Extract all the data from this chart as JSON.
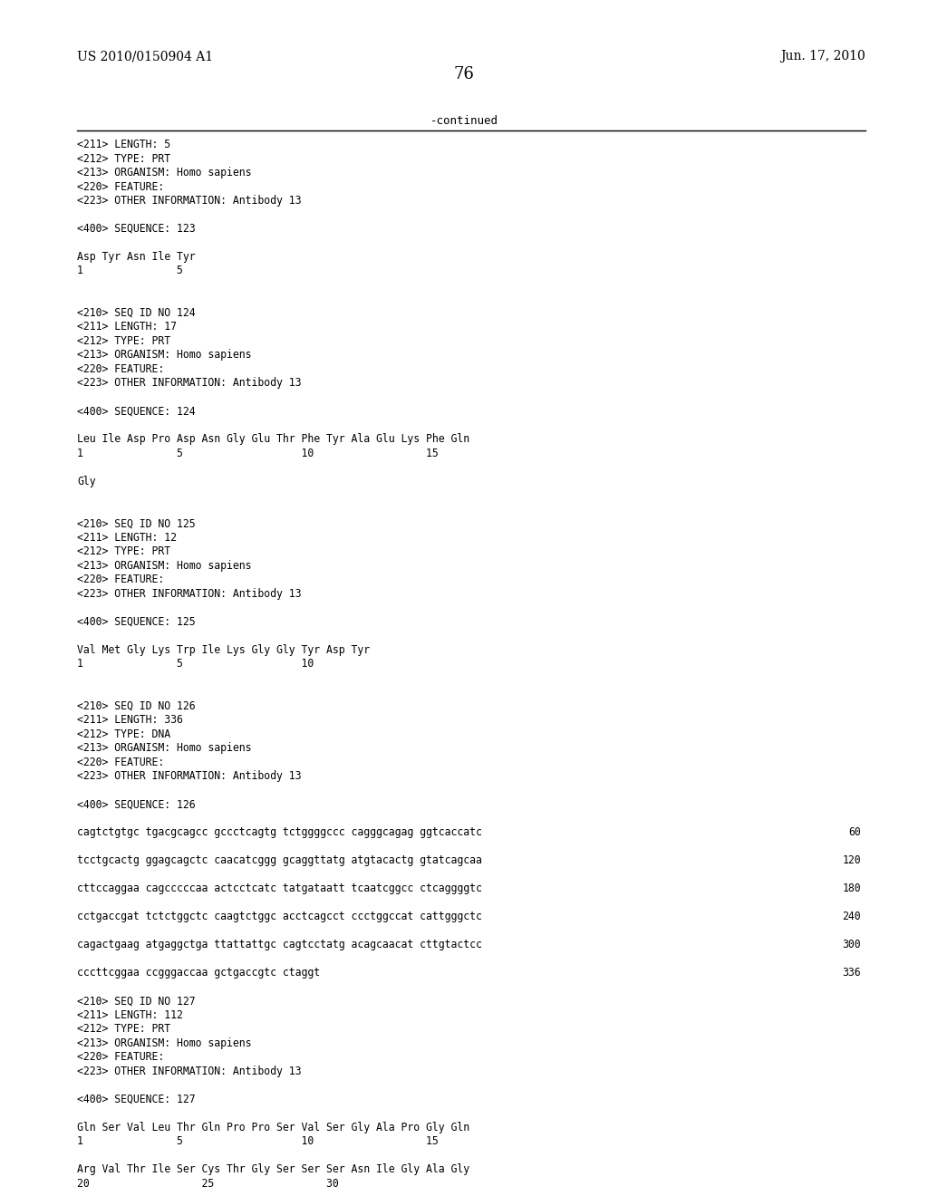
{
  "header_left": "US 2010/0150904 A1",
  "header_right": "Jun. 17, 2010",
  "page_number": "76",
  "continued_label": "-continued",
  "background_color": "#ffffff",
  "text_color": "#000000",
  "lines": [
    {
      "text": "<211> LENGTH: 5",
      "num": null
    },
    {
      "text": "<212> TYPE: PRT",
      "num": null
    },
    {
      "text": "<213> ORGANISM: Homo sapiens",
      "num": null
    },
    {
      "text": "<220> FEATURE:",
      "num": null
    },
    {
      "text": "<223> OTHER INFORMATION: Antibody 13",
      "num": null
    },
    {
      "text": "",
      "num": null
    },
    {
      "text": "<400> SEQUENCE: 123",
      "num": null
    },
    {
      "text": "",
      "num": null
    },
    {
      "text": "Asp Tyr Asn Ile Tyr",
      "num": null
    },
    {
      "text": "1               5",
      "num": null
    },
    {
      "text": "",
      "num": null
    },
    {
      "text": "",
      "num": null
    },
    {
      "text": "<210> SEQ ID NO 124",
      "num": null
    },
    {
      "text": "<211> LENGTH: 17",
      "num": null
    },
    {
      "text": "<212> TYPE: PRT",
      "num": null
    },
    {
      "text": "<213> ORGANISM: Homo sapiens",
      "num": null
    },
    {
      "text": "<220> FEATURE:",
      "num": null
    },
    {
      "text": "<223> OTHER INFORMATION: Antibody 13",
      "num": null
    },
    {
      "text": "",
      "num": null
    },
    {
      "text": "<400> SEQUENCE: 124",
      "num": null
    },
    {
      "text": "",
      "num": null
    },
    {
      "text": "Leu Ile Asp Pro Asp Asn Gly Glu Thr Phe Tyr Ala Glu Lys Phe Gln",
      "num": null
    },
    {
      "text": "1               5                   10                  15",
      "num": null
    },
    {
      "text": "",
      "num": null
    },
    {
      "text": "Gly",
      "num": null
    },
    {
      "text": "",
      "num": null
    },
    {
      "text": "",
      "num": null
    },
    {
      "text": "<210> SEQ ID NO 125",
      "num": null
    },
    {
      "text": "<211> LENGTH: 12",
      "num": null
    },
    {
      "text": "<212> TYPE: PRT",
      "num": null
    },
    {
      "text": "<213> ORGANISM: Homo sapiens",
      "num": null
    },
    {
      "text": "<220> FEATURE:",
      "num": null
    },
    {
      "text": "<223> OTHER INFORMATION: Antibody 13",
      "num": null
    },
    {
      "text": "",
      "num": null
    },
    {
      "text": "<400> SEQUENCE: 125",
      "num": null
    },
    {
      "text": "",
      "num": null
    },
    {
      "text": "Val Met Gly Lys Trp Ile Lys Gly Gly Tyr Asp Tyr",
      "num": null
    },
    {
      "text": "1               5                   10",
      "num": null
    },
    {
      "text": "",
      "num": null
    },
    {
      "text": "",
      "num": null
    },
    {
      "text": "<210> SEQ ID NO 126",
      "num": null
    },
    {
      "text": "<211> LENGTH: 336",
      "num": null
    },
    {
      "text": "<212> TYPE: DNA",
      "num": null
    },
    {
      "text": "<213> ORGANISM: Homo sapiens",
      "num": null
    },
    {
      "text": "<220> FEATURE:",
      "num": null
    },
    {
      "text": "<223> OTHER INFORMATION: Antibody 13",
      "num": null
    },
    {
      "text": "",
      "num": null
    },
    {
      "text": "<400> SEQUENCE: 126",
      "num": null
    },
    {
      "text": "",
      "num": null
    },
    {
      "text": "cagtctgtgc tgacgcagcc gccctcagtg tctggggccc cagggcagag ggtcaccatc",
      "num": "60"
    },
    {
      "text": "",
      "num": null
    },
    {
      "text": "tcctgcactg ggagcagctc caacatcggg gcaggttatg atgtacactg gtatcagcaa",
      "num": "120"
    },
    {
      "text": "",
      "num": null
    },
    {
      "text": "cttccaggaa cagcccccaa actcctcatc tatgataatt tcaatcggcc ctcaggggtc",
      "num": "180"
    },
    {
      "text": "",
      "num": null
    },
    {
      "text": "cctgaccgat tctctggctc caagtctggc acctcagcct ccctggccat cattgggctc",
      "num": "240"
    },
    {
      "text": "",
      "num": null
    },
    {
      "text": "cagactgaag atgaggctga ttattattgc cagtcctatg acagcaacat cttgtactcc",
      "num": "300"
    },
    {
      "text": "",
      "num": null
    },
    {
      "text": "cccttcggaa ccgggaccaa gctgaccgtc ctaggt",
      "num": "336"
    },
    {
      "text": "",
      "num": null
    },
    {
      "text": "<210> SEQ ID NO 127",
      "num": null
    },
    {
      "text": "<211> LENGTH: 112",
      "num": null
    },
    {
      "text": "<212> TYPE: PRT",
      "num": null
    },
    {
      "text": "<213> ORGANISM: Homo sapiens",
      "num": null
    },
    {
      "text": "<220> FEATURE:",
      "num": null
    },
    {
      "text": "<223> OTHER INFORMATION: Antibody 13",
      "num": null
    },
    {
      "text": "",
      "num": null
    },
    {
      "text": "<400> SEQUENCE: 127",
      "num": null
    },
    {
      "text": "",
      "num": null
    },
    {
      "text": "Gln Ser Val Leu Thr Gln Pro Pro Ser Val Ser Gly Ala Pro Gly Gln",
      "num": null
    },
    {
      "text": "1               5                   10                  15",
      "num": null
    },
    {
      "text": "",
      "num": null
    },
    {
      "text": "Arg Val Thr Ile Ser Cys Thr Gly Ser Ser Ser Asn Ile Gly Ala Gly",
      "num": null
    },
    {
      "text": "20                  25                  30",
      "num": null
    }
  ]
}
